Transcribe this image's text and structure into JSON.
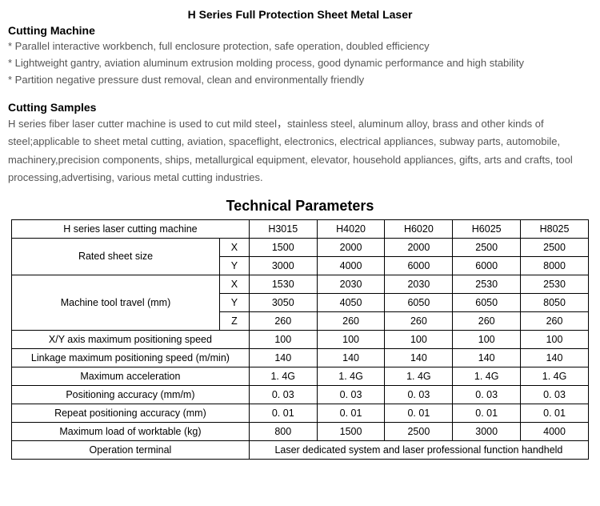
{
  "title": "H Series Full Protection Sheet Metal Laser",
  "section1_title": "Cutting Machine",
  "bullets": [
    "* Parallel interactive workbench, full enclosure protection, safe operation, doubled efficiency",
    "* Lightweight gantry, aviation aluminum extrusion molding process, good dynamic performance and high stability",
    "* Partition negative pressure dust removal, clean and environmentally friendly"
  ],
  "section2_title": "Cutting Samples",
  "description": "H series fiber laser cutter machine is used to cut mild steel，stainless steel, aluminum alloy, brass and other kinds of steel;applicable to sheet metal cutting, aviation, spaceflight, electronics, electrical appliances, subway parts, automobile, machinery,precision components, ships, metallurgical equipment, elevator, household appliances, gifts, arts and crafts, tool processing,advertising, various metal cutting industries.",
  "tech_title": "Technical Parameters",
  "table": {
    "header_label": "H series laser cutting machine",
    "models": [
      "H3015",
      "H4020",
      "H6020",
      "H6025",
      "H8025"
    ],
    "rated_sheet_label": "Rated sheet size",
    "rated_sheet_x": [
      "1500",
      "2000",
      "2000",
      "2500",
      "2500"
    ],
    "rated_sheet_y": [
      "3000",
      "4000",
      "6000",
      "6000",
      "8000"
    ],
    "travel_label": "Machine tool travel (mm)",
    "travel_x": [
      "1530",
      "2030",
      "2030",
      "2530",
      "2530"
    ],
    "travel_y": [
      "3050",
      "4050",
      "6050",
      "6050",
      "8050"
    ],
    "travel_z": [
      "260",
      "260",
      "260",
      "260",
      "260"
    ],
    "xy_speed_label": "X/Y axis maximum positioning speed",
    "xy_speed": [
      "100",
      "100",
      "100",
      "100",
      "100"
    ],
    "linkage_label": "Linkage maximum positioning speed (m/min)",
    "linkage": [
      "140",
      "140",
      "140",
      "140",
      "140"
    ],
    "accel_label": "Maximum acceleration",
    "accel": [
      "1. 4G",
      "1. 4G",
      "1. 4G",
      "1. 4G",
      "1. 4G"
    ],
    "pos_acc_label": "Positioning accuracy (mm/m)",
    "pos_acc": [
      "0. 03",
      "0. 03",
      "0. 03",
      "0. 03",
      "0. 03"
    ],
    "rep_acc_label": "Repeat positioning accuracy (mm)",
    "rep_acc": [
      "0. 01",
      "0. 01",
      "0. 01",
      "0. 01",
      "0. 01"
    ],
    "load_label": "Maximum load of worktable (kg)",
    "load": [
      "800",
      "1500",
      "2500",
      "3000",
      "4000"
    ],
    "op_term_label": "Operation terminal",
    "op_term_value": "Laser dedicated system and laser professional function handheld",
    "axis_x": "X",
    "axis_y": "Y",
    "axis_z": "Z"
  }
}
